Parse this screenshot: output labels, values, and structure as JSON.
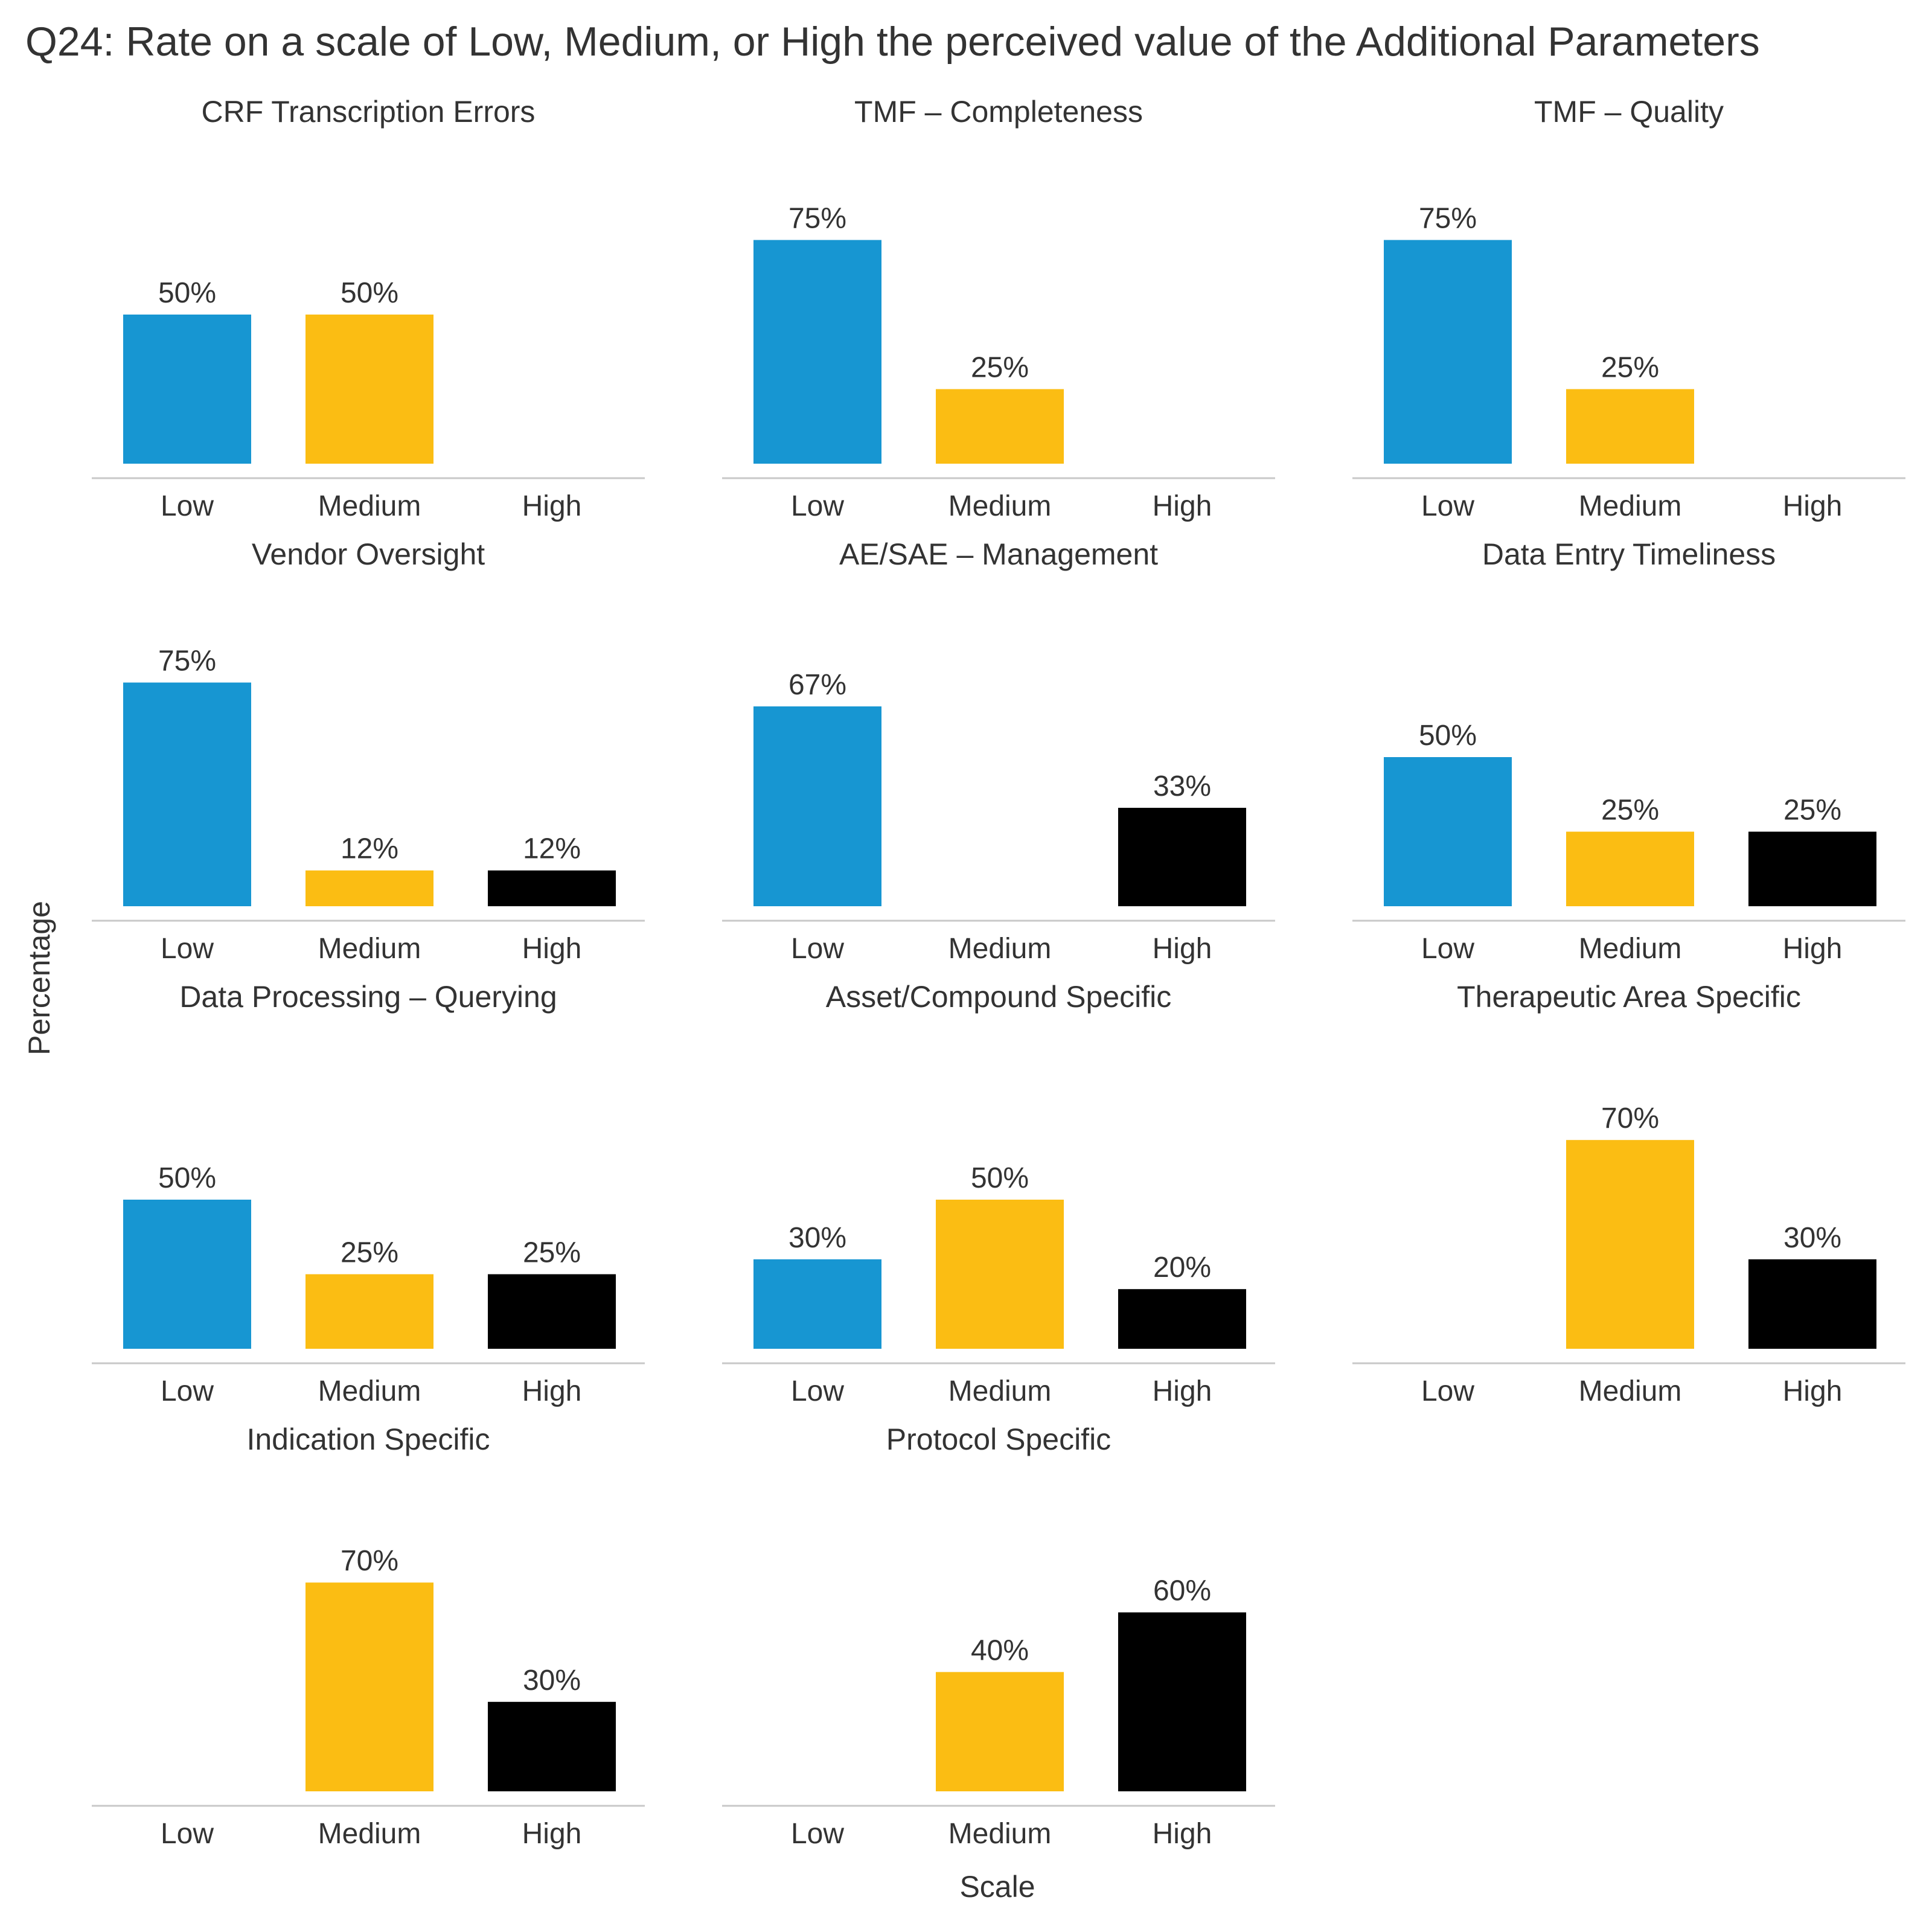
{
  "chart_data": {
    "type": "bar",
    "title": "Q24: Rate on a scale of Low, Medium, or High the perceived value of the Additional Parameters",
    "xlabel": "Scale",
    "ylabel": "Percentage",
    "categories": [
      "Low",
      "Medium",
      "High"
    ],
    "colors": {
      "Low": "#1796d2",
      "Medium": "#fbbd13",
      "High": "#000000"
    },
    "value_suffix": "%",
    "ylim": [
      0,
      75
    ],
    "panels": [
      {
        "title": "CRF Transcription Errors",
        "values": [
          50,
          50,
          0
        ]
      },
      {
        "title": "TMF – Completeness",
        "values": [
          75,
          25,
          0
        ]
      },
      {
        "title": "TMF – Quality",
        "values": [
          75,
          25,
          0
        ]
      },
      {
        "title": "Vendor Oversight",
        "values": [
          75,
          12,
          12
        ]
      },
      {
        "title": "AE/SAE – Management",
        "values": [
          67,
          0,
          33
        ]
      },
      {
        "title": "Data Entry Timeliness",
        "values": [
          50,
          25,
          25
        ]
      },
      {
        "title": "Data Processing – Querying",
        "values": [
          50,
          25,
          25
        ]
      },
      {
        "title": "Asset/Compound Specific",
        "values": [
          30,
          50,
          20
        ]
      },
      {
        "title": "Therapeutic Area Specific",
        "values": [
          0,
          70,
          30
        ]
      },
      {
        "title": "Indication Specific",
        "values": [
          0,
          70,
          30
        ]
      },
      {
        "title": "Protocol Specific",
        "values": [
          0,
          40,
          60
        ]
      }
    ]
  }
}
